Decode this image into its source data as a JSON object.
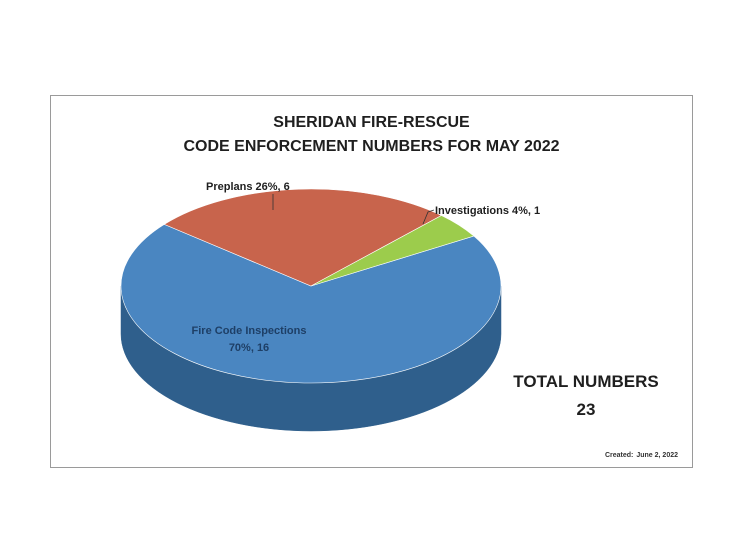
{
  "chart_data": {
    "type": "pie",
    "title": [
      "SHERIDAN FIRE-RESCUE",
      "CODE ENFORCEMENT NUMBERS FOR MAY 2022"
    ],
    "slices": [
      {
        "name": "Fire Code Inspections",
        "percent": 70,
        "value": 16,
        "label_line1": "Fire Code Inspections",
        "label_line2": "70%, 16",
        "color": "#4a86c1",
        "side_color": "#2f5f8c"
      },
      {
        "name": "Preplans",
        "percent": 26,
        "value": 6,
        "label_line1": "Preplans  26%, 6",
        "color": "#c8644c",
        "side_color": "#8e4332"
      },
      {
        "name": "Investigations",
        "percent": 4,
        "value": 1,
        "label_line1": "Investigations  4%, 1",
        "color": "#9ccc4c",
        "side_color": "#6f9434"
      }
    ],
    "total_label": "TOTAL NUMBERS",
    "total_value": "23"
  },
  "footer": {
    "created_label": "Created:",
    "created_date": "June 2, 2022"
  }
}
